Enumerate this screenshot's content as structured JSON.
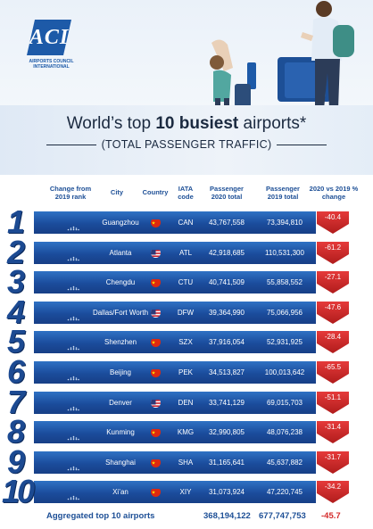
{
  "logo": {
    "mark": "ACI",
    "text_line1": "AIRPORTS COUNCIL",
    "text_line2": "INTERNATIONAL"
  },
  "title": {
    "prefix": "World’s top ",
    "bold1": "10",
    "space": " ",
    "bold2": "busiest",
    "suffix": " airports*"
  },
  "subtitle": "(TOTAL PASSENGER TRAFFIC)",
  "headers": {
    "change": "Change from 2019 rank",
    "city": "City",
    "country": "Country",
    "iata": "IATA code",
    "p2020": "Passenger 2020 total",
    "p2019": "Passenger 2019 total",
    "pct": "2020 vs 2019 % change"
  },
  "rows": [
    {
      "rank": "1",
      "city": "Guangzhou",
      "country": "china",
      "iata": "CAN",
      "p2020": "43,767,558",
      "p2019": "73,394,810",
      "pct": "-40.4"
    },
    {
      "rank": "2",
      "city": "Atlanta",
      "country": "usa",
      "iata": "ATL",
      "p2020": "42,918,685",
      "p2019": "110,531,300",
      "pct": "-61.2"
    },
    {
      "rank": "3",
      "city": "Chengdu",
      "country": "china",
      "iata": "CTU",
      "p2020": "40,741,509",
      "p2019": "55,858,552",
      "pct": "-27.1"
    },
    {
      "rank": "4",
      "city": "Dallas/Fort Worth",
      "country": "usa",
      "iata": "DFW",
      "p2020": "39,364,990",
      "p2019": "75,066,956",
      "pct": "-47.6"
    },
    {
      "rank": "5",
      "city": "Shenzhen",
      "country": "china",
      "iata": "SZX",
      "p2020": "37,916,054",
      "p2019": "52,931,925",
      "pct": "-28.4"
    },
    {
      "rank": "6",
      "city": "Beijing",
      "country": "china",
      "iata": "PEK",
      "p2020": "34,513,827",
      "p2019": "100,013,642",
      "pct": "-65.5"
    },
    {
      "rank": "7",
      "city": "Denver",
      "country": "usa",
      "iata": "DEN",
      "p2020": "33,741,129",
      "p2019": "69,015,703",
      "pct": "-51.1"
    },
    {
      "rank": "8",
      "city": "Kunming",
      "country": "china",
      "iata": "KMG",
      "p2020": "32,990,805",
      "p2019": "48,076,238",
      "pct": "-31.4"
    },
    {
      "rank": "9",
      "city": "Shanghai",
      "country": "china",
      "iata": "SHA",
      "p2020": "31,165,641",
      "p2019": "45,637,882",
      "pct": "-31.7"
    },
    {
      "rank": "10",
      "city": "Xi’an",
      "country": "china",
      "iata": "XIY",
      "p2020": "31,073,924",
      "p2019": "47,220,745",
      "pct": "-34.2"
    }
  ],
  "footer": {
    "label": "Aggregated top 10 airports",
    "p2020": "368,194,122",
    "p2019": "677,747,753",
    "pct": "-45.7"
  },
  "colors": {
    "bar": "#1b4c9c",
    "rank": "#1c4a92",
    "change": "#d42a2a",
    "header": "#1d4f96"
  }
}
